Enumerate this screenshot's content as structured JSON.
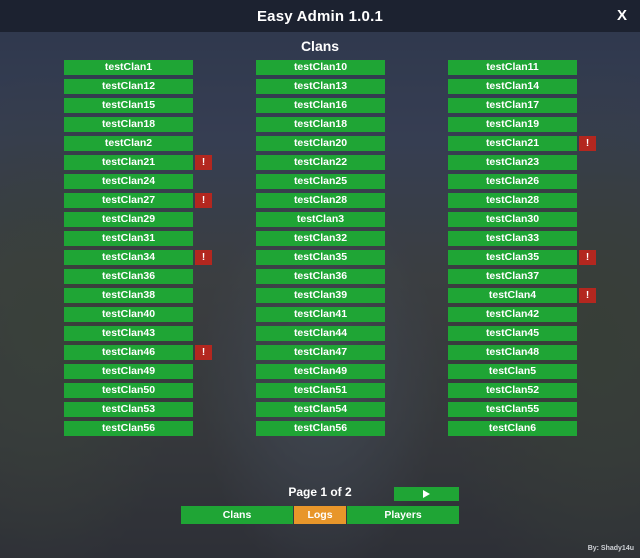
{
  "window": {
    "title": "Easy Admin 1.0.1",
    "close_label": "X"
  },
  "section_title": "Clans",
  "columns": [
    {
      "items": [
        {
          "name": "testClan1",
          "alert": false
        },
        {
          "name": "testClan12",
          "alert": false
        },
        {
          "name": "testClan15",
          "alert": false
        },
        {
          "name": "testClan18",
          "alert": false
        },
        {
          "name": "testClan2",
          "alert": false
        },
        {
          "name": "testClan21",
          "alert": true
        },
        {
          "name": "testClan24",
          "alert": false
        },
        {
          "name": "testClan27",
          "alert": true
        },
        {
          "name": "testClan29",
          "alert": false
        },
        {
          "name": "testClan31",
          "alert": false
        },
        {
          "name": "testClan34",
          "alert": true
        },
        {
          "name": "testClan36",
          "alert": false
        },
        {
          "name": "testClan38",
          "alert": false
        },
        {
          "name": "testClan40",
          "alert": false
        },
        {
          "name": "testClan43",
          "alert": false
        },
        {
          "name": "testClan46",
          "alert": true
        },
        {
          "name": "testClan49",
          "alert": false
        },
        {
          "name": "testClan50",
          "alert": false
        },
        {
          "name": "testClan53",
          "alert": false
        },
        {
          "name": "testClan56",
          "alert": false
        }
      ]
    },
    {
      "items": [
        {
          "name": "testClan10",
          "alert": false
        },
        {
          "name": "testClan13",
          "alert": false
        },
        {
          "name": "testClan16",
          "alert": false
        },
        {
          "name": "testClan18",
          "alert": false
        },
        {
          "name": "testClan20",
          "alert": false
        },
        {
          "name": "testClan22",
          "alert": false
        },
        {
          "name": "testClan25",
          "alert": false
        },
        {
          "name": "testClan28",
          "alert": false
        },
        {
          "name": "testClan3",
          "alert": false
        },
        {
          "name": "testClan32",
          "alert": false
        },
        {
          "name": "testClan35",
          "alert": false
        },
        {
          "name": "testClan36",
          "alert": false
        },
        {
          "name": "testClan39",
          "alert": false
        },
        {
          "name": "testClan41",
          "alert": false
        },
        {
          "name": "testClan44",
          "alert": false
        },
        {
          "name": "testClan47",
          "alert": false
        },
        {
          "name": "testClan49",
          "alert": false
        },
        {
          "name": "testClan51",
          "alert": false
        },
        {
          "name": "testClan54",
          "alert": false
        },
        {
          "name": "testClan56",
          "alert": false
        }
      ]
    },
    {
      "items": [
        {
          "name": "testClan11",
          "alert": false
        },
        {
          "name": "testClan14",
          "alert": false
        },
        {
          "name": "testClan17",
          "alert": false
        },
        {
          "name": "testClan19",
          "alert": false
        },
        {
          "name": "testClan21",
          "alert": true
        },
        {
          "name": "testClan23",
          "alert": false
        },
        {
          "name": "testClan26",
          "alert": false
        },
        {
          "name": "testClan28",
          "alert": false
        },
        {
          "name": "testClan30",
          "alert": false
        },
        {
          "name": "testClan33",
          "alert": false
        },
        {
          "name": "testClan35",
          "alert": true
        },
        {
          "name": "testClan37",
          "alert": false
        },
        {
          "name": "testClan4",
          "alert": true
        },
        {
          "name": "testClan42",
          "alert": false
        },
        {
          "name": "testClan45",
          "alert": false
        },
        {
          "name": "testClan48",
          "alert": false
        },
        {
          "name": "testClan5",
          "alert": false
        },
        {
          "name": "testClan52",
          "alert": false
        },
        {
          "name": "testClan55",
          "alert": false
        },
        {
          "name": "testClan6",
          "alert": false
        }
      ]
    }
  ],
  "alert_label": "!",
  "pagination": {
    "label": "Page 1 of 2",
    "next_icon": "play-triangle-icon"
  },
  "tabs": [
    {
      "label": "Clans",
      "color": "#1fa535",
      "active": false
    },
    {
      "label": "Logs",
      "color": "#e8962a",
      "active": true
    },
    {
      "label": "Players",
      "color": "#1fa535",
      "active": false
    }
  ],
  "credit": "By: Shady14u",
  "colors": {
    "button_green": "#1fa535",
    "alert_red": "#b3271f",
    "tab_active_orange": "#e8962a",
    "titlebar": "#1c2230"
  }
}
